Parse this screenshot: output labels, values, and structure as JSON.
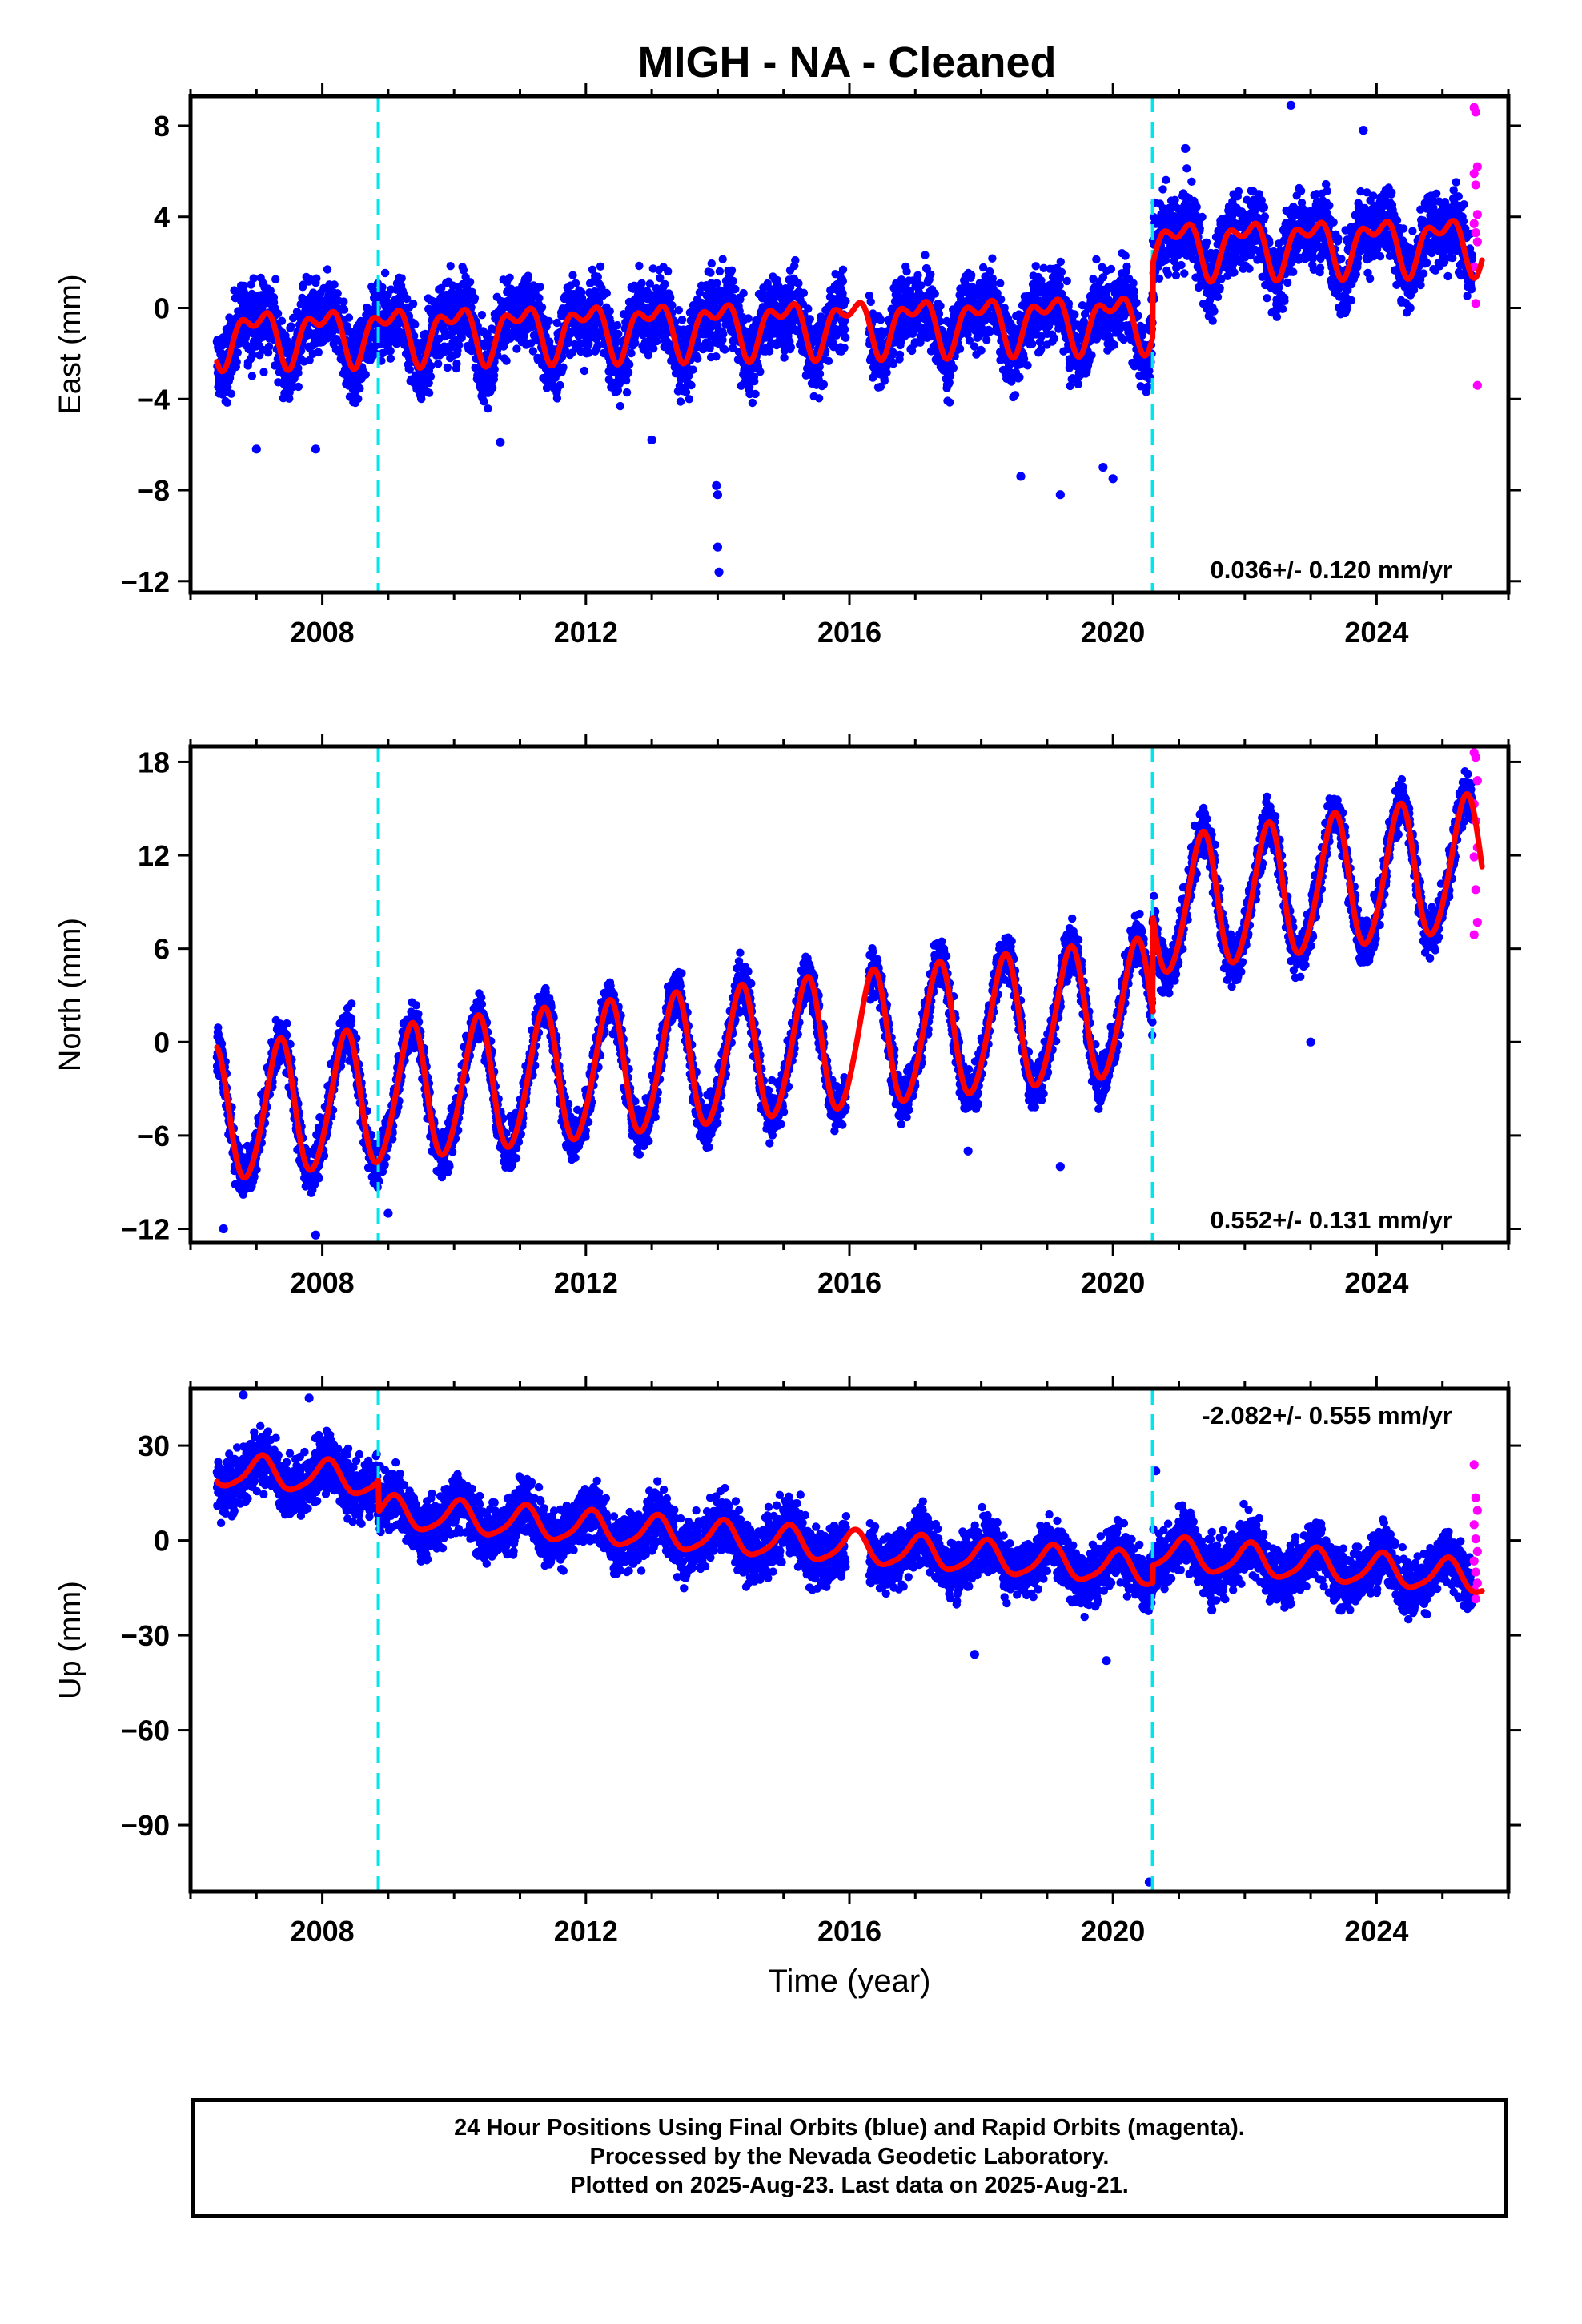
{
  "title": "MIGH  - NA - Cleaned",
  "footer": {
    "line1": "24 Hour Positions Using Final Orbits (blue) and Rapid Orbits (magenta).",
    "line2": "Processed by the Nevada Geodetic Laboratory.",
    "line3": "Plotted on 2025-Aug-23. Last data on 2025-Aug-21."
  },
  "colors": {
    "final_orbits": "#0000ff",
    "rapid_orbits": "#ff00ff",
    "model": "#ff0000",
    "steps": "#00e5ee",
    "axes": "#000000"
  },
  "chart_data": [
    {
      "type": "scatter",
      "panel": "east",
      "ylabel": "East (mm)",
      "xlabel": "",
      "xlim": [
        2006.0,
        2026.0
      ],
      "ylim": [
        -12.5,
        9.3
      ],
      "xticks": [
        2008,
        2012,
        2016,
        2020,
        2024
      ],
      "yticks": [
        8,
        4,
        0,
        -4,
        -8,
        -12
      ],
      "ytick_labels": [
        "8",
        "4",
        "0",
        "−4",
        "−8",
        "−12"
      ],
      "rate_label": "0.036+/- 0.120 mm/yr",
      "rate_position": "bottom-right",
      "steps": [
        2008.85,
        2020.6
      ],
      "data_start": 2006.4,
      "data_end": 2025.55,
      "gap": [
        2015.95,
        2016.3
      ],
      "rapid_start": 2025.45,
      "segments": [
        {
          "t0": 2006.4,
          "t1": 2020.6,
          "offset_start": -1.2,
          "offset_end": -0.5
        },
        {
          "t0": 2020.6,
          "t1": 2025.6,
          "offset_start": 2.7,
          "offset_end": 2.9
        }
      ],
      "seasonal": {
        "annual": 1.0,
        "annual_phase": 0.75,
        "semiannual": 0.6,
        "semiannual_phase": 0.1
      },
      "scatter_spread": 1.2,
      "outliers": [
        [
          2007.0,
          -6.2
        ],
        [
          2007.9,
          -6.2
        ],
        [
          2010.7,
          -5.9
        ],
        [
          2013.98,
          -7.8
        ],
        [
          2014.0,
          -8.2
        ],
        [
          2014.0,
          -10.5
        ],
        [
          2014.02,
          -11.6
        ],
        [
          2018.6,
          -7.4
        ],
        [
          2019.2,
          -8.2
        ],
        [
          2019.85,
          -7.0
        ],
        [
          2020.0,
          -7.5
        ],
        [
          2013.0,
          -5.8
        ],
        [
          2022.7,
          8.9
        ],
        [
          2023.8,
          7.8
        ],
        [
          2021.1,
          7.0
        ]
      ],
      "rapid_values": [
        8.8,
        8.6,
        6.2,
        5.9,
        5.4,
        4.1,
        3.7,
        3.3,
        2.9,
        1.8,
        0.2,
        -3.4
      ]
    },
    {
      "type": "scatter",
      "panel": "north",
      "ylabel": "North (mm)",
      "xlabel": "",
      "xlim": [
        2006.0,
        2026.0
      ],
      "ylim": [
        -12.9,
        19.0
      ],
      "xticks": [
        2008,
        2012,
        2016,
        2020,
        2024
      ],
      "yticks": [
        18,
        12,
        6,
        0,
        -6,
        -12
      ],
      "ytick_labels": [
        "18",
        "12",
        "6",
        "0",
        "−6",
        "−12"
      ],
      "rate_label": "0.552+/- 0.131 mm/yr",
      "rate_position": "bottom-right",
      "steps": [
        2008.85,
        2020.6
      ],
      "data_start": 2006.4,
      "data_end": 2025.55,
      "gap": [
        2015.95,
        2016.3
      ],
      "rapid_start": 2025.45,
      "segments": [
        {
          "t0": 2006.4,
          "t1": 2020.6,
          "offset_start": -4.8,
          "offset_end": 2.2
        },
        {
          "t0": 2020.6,
          "t1": 2025.6,
          "offset_start": 8.5,
          "offset_end": 11.5
        }
      ],
      "seasonal": {
        "annual": 4.3,
        "annual_phase": 0.1,
        "semiannual": 0.4,
        "semiannual_phase": 0.3
      },
      "scatter_spread": 1.1,
      "outliers": [
        [
          2007.9,
          -12.4
        ],
        [
          2009.0,
          -11.0
        ],
        [
          2017.8,
          -7.0
        ],
        [
          2019.2,
          -8.0
        ],
        [
          2023.0,
          0.0
        ],
        [
          2006.5,
          -12.0
        ]
      ],
      "rapid_values": [
        18.6,
        18.3,
        16.8,
        15.3,
        14.2,
        12.5,
        11.9,
        9.8,
        7.7,
        6.9
      ]
    },
    {
      "type": "scatter",
      "panel": "up",
      "ylabel": "Up (mm)",
      "xlabel": "Time (year)",
      "xlim": [
        2006.0,
        2026.0
      ],
      "ylim": [
        -111,
        48
      ],
      "xticks": [
        2008,
        2012,
        2016,
        2020,
        2024
      ],
      "yticks": [
        30,
        0,
        -30,
        -60,
        -90
      ],
      "ytick_labels": [
        "30",
        "0",
        "−30",
        "−60",
        "−90"
      ],
      "rate_label": "-2.082+/- 0.555 mm/yr",
      "rate_position": "top-right",
      "steps": [
        2008.85,
        2020.6
      ],
      "data_start": 2006.4,
      "data_end": 2025.55,
      "gap": [
        2015.95,
        2016.3
      ],
      "rapid_start": 2025.45,
      "segments": [
        {
          "t0": 2006.4,
          "t1": 2008.85,
          "offset_start": 22.0,
          "offset_end": 19.0
        },
        {
          "t0": 2008.85,
          "t1": 2020.6,
          "offset_start": 9.0,
          "offset_end": -9.5
        },
        {
          "t0": 2020.6,
          "t1": 2025.6,
          "offset_start": -4.0,
          "offset_end": -12.0
        }
      ],
      "seasonal": {
        "annual": 5.0,
        "annual_phase": 0.82,
        "semiannual": 1.0,
        "semiannual_phase": 0.5
      },
      "scatter_spread": 6.5,
      "outliers": [
        [
          2006.8,
          46.0
        ],
        [
          2007.8,
          45.0
        ],
        [
          2020.55,
          -108.0
        ],
        [
          2020.65,
          22.0
        ],
        [
          2021.5,
          -22.0
        ],
        [
          2017.9,
          -36.0
        ],
        [
          2019.9,
          -38.0
        ]
      ],
      "rapid_values": [
        24.0,
        13.5,
        9.5,
        5.0,
        0.5,
        -3.5,
        -6.5,
        -10.0,
        -13.5,
        -15.5,
        -18.5
      ]
    }
  ]
}
